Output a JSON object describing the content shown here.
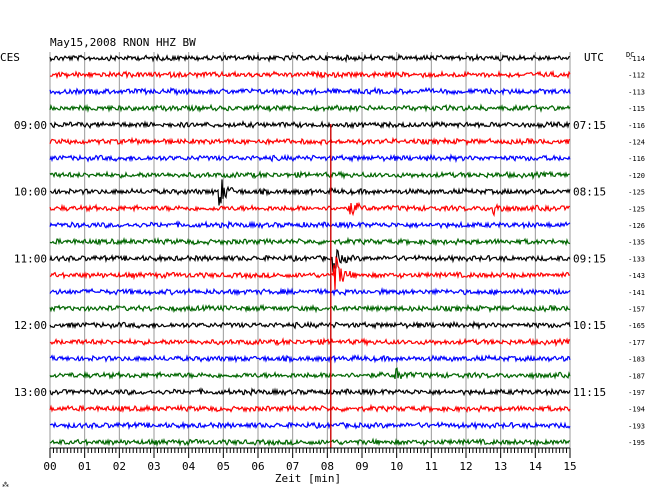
{
  "chart_data": {
    "type": "line",
    "title": "May15,2008   RNON HHZ BW",
    "left_timezone": "CES",
    "right_timezone": "UTC",
    "dc_label": "DC",
    "xlabel": "Zeit [min]",
    "xlim": [
      0,
      15
    ],
    "x_ticks": [
      "00",
      "01",
      "02",
      "03",
      "04",
      "05",
      "06",
      "07",
      "08",
      "09",
      "10",
      "11",
      "12",
      "13",
      "14",
      "15"
    ],
    "left_hour_labels": [
      {
        "row": 4,
        "text": "09:00"
      },
      {
        "row": 8,
        "text": "10:00"
      },
      {
        "row": 12,
        "text": "11:00"
      },
      {
        "row": 16,
        "text": "12:00"
      },
      {
        "row": 20,
        "text": "13:00"
      }
    ],
    "right_hour_labels": [
      {
        "row": 4,
        "text": "07:15"
      },
      {
        "row": 8,
        "text": "08:15"
      },
      {
        "row": 12,
        "text": "09:15"
      },
      {
        "row": 16,
        "text": "10:15"
      },
      {
        "row": 20,
        "text": "11:15"
      }
    ],
    "trace_colors": [
      "#000000",
      "#ff0000",
      "#0000ff",
      "#006600"
    ],
    "dc_offsets": [
      -114,
      -112,
      -113,
      -115,
      -116,
      -124,
      -116,
      -120,
      -125,
      -125,
      -126,
      -135,
      -133,
      -143,
      -141,
      -157,
      -165,
      -177,
      -183,
      -187,
      -197,
      -194,
      -193,
      -195
    ],
    "events": [
      {
        "row": 8,
        "minute": 4.9,
        "amplitude": 1.1
      },
      {
        "row": 9,
        "minute": 8.7,
        "amplitude": 0.5
      },
      {
        "row": 9,
        "minute": 12.8,
        "amplitude": 0.5
      },
      {
        "row": 12,
        "minute": 8.2,
        "amplitude": 0.8
      },
      {
        "row": 13,
        "minute": 8.2,
        "amplitude": 1.6
      },
      {
        "row": 19,
        "minute": 10.0,
        "amplitude": 0.4
      }
    ],
    "marker_line": {
      "minute": 8.1,
      "color": "#cc0000"
    },
    "corner_mark": "⁂"
  }
}
